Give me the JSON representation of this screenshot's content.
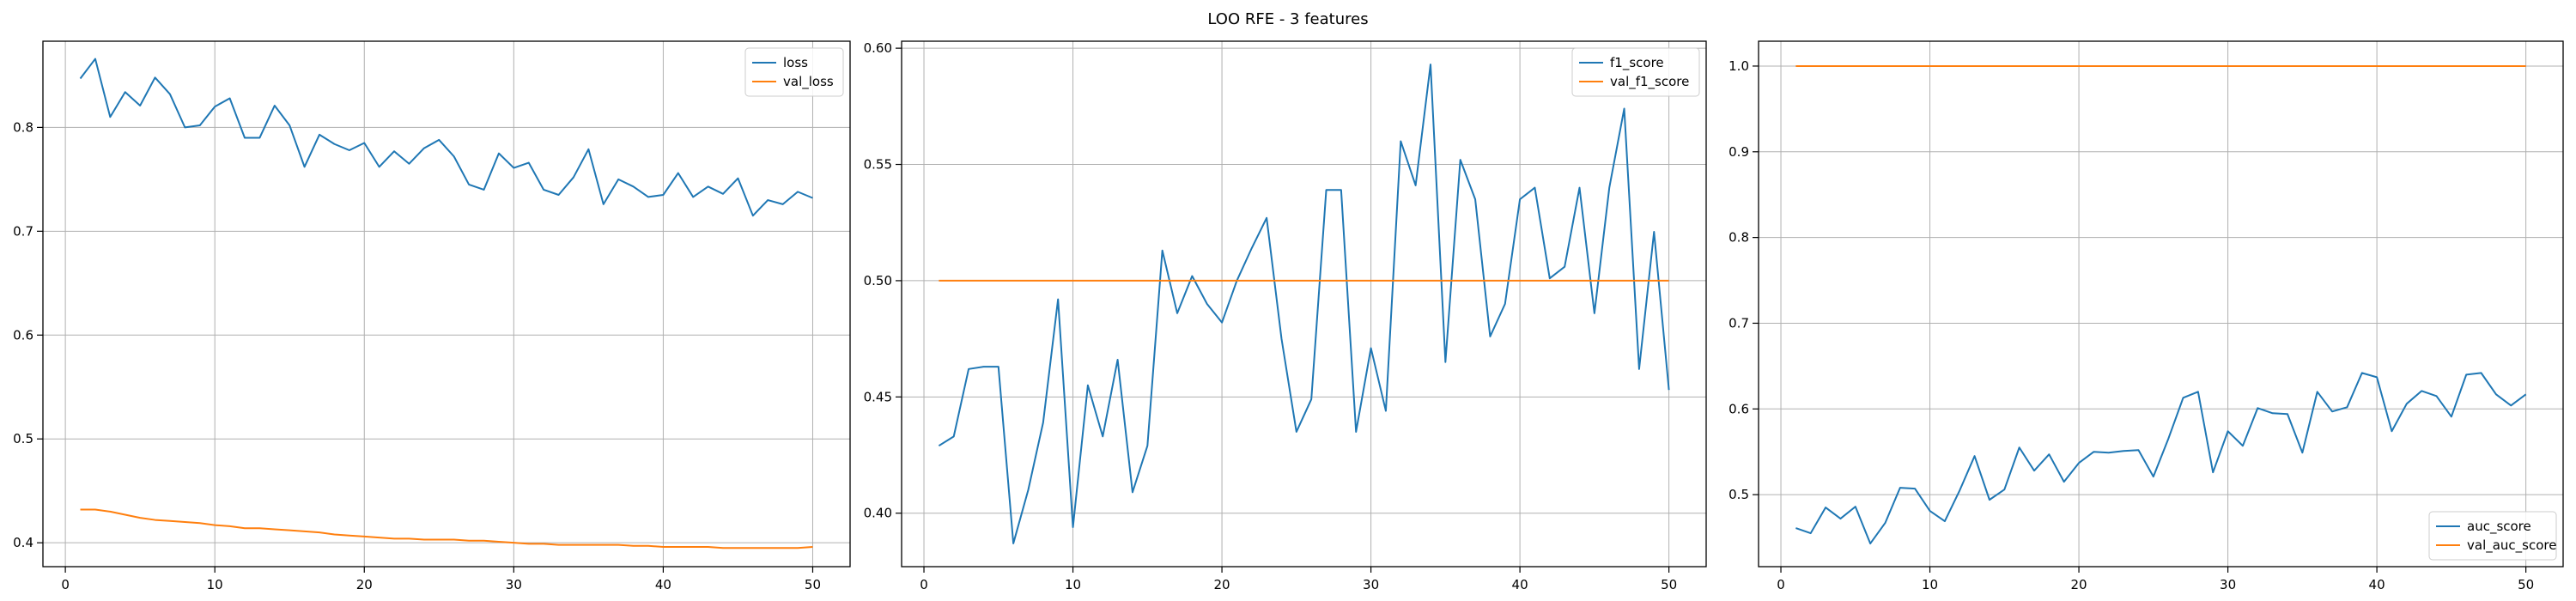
{
  "figure": {
    "title": "LOO RFE - 3 features"
  },
  "colors": {
    "series_primary": "#1f77b4",
    "series_secondary": "#ff7f0e",
    "grid": "#b0b0b0"
  },
  "chart_data": [
    {
      "type": "line",
      "xlabel": "",
      "ylabel": "",
      "xlim": [
        -1.5,
        52.5
      ],
      "ylim": [
        0.377,
        0.883
      ],
      "xticks": [
        0,
        10,
        20,
        30,
        40,
        50
      ],
      "yticks": [
        0.4,
        0.5,
        0.6,
        0.7,
        0.8
      ],
      "grid": true,
      "legend_position": "top-right",
      "x": [
        1,
        2,
        3,
        4,
        5,
        6,
        7,
        8,
        9,
        10,
        11,
        12,
        13,
        14,
        15,
        16,
        17,
        18,
        19,
        20,
        21,
        22,
        23,
        24,
        25,
        26,
        27,
        28,
        29,
        30,
        31,
        32,
        33,
        34,
        35,
        36,
        37,
        38,
        39,
        40,
        41,
        42,
        43,
        44,
        45,
        46,
        47,
        48,
        49,
        50
      ],
      "series": [
        {
          "name": "loss",
          "values": [
            0.847,
            0.866,
            0.81,
            0.834,
            0.821,
            0.848,
            0.832,
            0.8,
            0.802,
            0.82,
            0.828,
            0.79,
            0.79,
            0.821,
            0.802,
            0.762,
            0.793,
            0.784,
            0.778,
            0.785,
            0.762,
            0.777,
            0.765,
            0.78,
            0.788,
            0.772,
            0.745,
            0.74,
            0.775,
            0.761,
            0.766,
            0.74,
            0.735,
            0.752,
            0.779,
            0.726,
            0.75,
            0.743,
            0.733,
            0.735,
            0.756,
            0.733,
            0.743,
            0.736,
            0.751,
            0.715,
            0.73,
            0.726,
            0.738,
            0.732
          ]
        },
        {
          "name": "val_loss",
          "values": [
            0.432,
            0.432,
            0.43,
            0.427,
            0.424,
            0.422,
            0.421,
            0.42,
            0.419,
            0.417,
            0.416,
            0.414,
            0.414,
            0.413,
            0.412,
            0.411,
            0.41,
            0.408,
            0.407,
            0.406,
            0.405,
            0.404,
            0.404,
            0.403,
            0.403,
            0.403,
            0.402,
            0.402,
            0.401,
            0.4,
            0.399,
            0.399,
            0.398,
            0.398,
            0.398,
            0.398,
            0.398,
            0.397,
            0.397,
            0.396,
            0.396,
            0.396,
            0.396,
            0.395,
            0.395,
            0.395,
            0.395,
            0.395,
            0.395,
            0.396
          ]
        }
      ]
    },
    {
      "type": "line",
      "xlabel": "",
      "ylabel": "",
      "xlim": [
        -1.5,
        52.5
      ],
      "ylim": [
        0.377,
        0.603
      ],
      "xticks": [
        0,
        10,
        20,
        30,
        40,
        50
      ],
      "yticks": [
        0.4,
        0.45,
        0.5,
        0.55,
        0.6
      ],
      "grid": true,
      "legend_position": "top-right",
      "x": [
        1,
        2,
        3,
        4,
        5,
        6,
        7,
        8,
        9,
        10,
        11,
        12,
        13,
        14,
        15,
        16,
        17,
        18,
        19,
        20,
        21,
        22,
        23,
        24,
        25,
        26,
        27,
        28,
        29,
        30,
        31,
        32,
        33,
        34,
        35,
        36,
        37,
        38,
        39,
        40,
        41,
        42,
        43,
        44,
        45,
        46,
        47,
        48,
        49,
        50
      ],
      "series": [
        {
          "name": "f1_score",
          "values": [
            0.429,
            0.433,
            0.462,
            0.463,
            0.463,
            0.387,
            0.41,
            0.439,
            0.492,
            0.394,
            0.455,
            0.433,
            0.466,
            0.409,
            0.429,
            0.513,
            0.486,
            0.502,
            0.49,
            0.482,
            0.5,
            0.514,
            0.527,
            0.475,
            0.435,
            0.449,
            0.539,
            0.539,
            0.435,
            0.471,
            0.444,
            0.56,
            0.541,
            0.593,
            0.465,
            0.552,
            0.535,
            0.476,
            0.49,
            0.535,
            0.54,
            0.501,
            0.506,
            0.54,
            0.486,
            0.54,
            0.574,
            0.462,
            0.521,
            0.453
          ]
        },
        {
          "name": "val_f1_score",
          "values": [
            0.5,
            0.5,
            0.5,
            0.5,
            0.5,
            0.5,
            0.5,
            0.5,
            0.5,
            0.5,
            0.5,
            0.5,
            0.5,
            0.5,
            0.5,
            0.5,
            0.5,
            0.5,
            0.5,
            0.5,
            0.5,
            0.5,
            0.5,
            0.5,
            0.5,
            0.5,
            0.5,
            0.5,
            0.5,
            0.5,
            0.5,
            0.5,
            0.5,
            0.5,
            0.5,
            0.5,
            0.5,
            0.5,
            0.5,
            0.5,
            0.5,
            0.5,
            0.5,
            0.5,
            0.5,
            0.5,
            0.5,
            0.5,
            0.5,
            0.5
          ]
        }
      ]
    },
    {
      "type": "line",
      "xlabel": "",
      "ylabel": "",
      "xlim": [
        -1.5,
        52.5
      ],
      "ylim": [
        0.416,
        1.029
      ],
      "xticks": [
        0,
        10,
        20,
        30,
        40,
        50
      ],
      "yticks": [
        0.5,
        0.6,
        0.7,
        0.8,
        0.9,
        1.0
      ],
      "grid": true,
      "legend_position": "bottom-right",
      "x": [
        1,
        2,
        3,
        4,
        5,
        6,
        7,
        8,
        9,
        10,
        11,
        12,
        13,
        14,
        15,
        16,
        17,
        18,
        19,
        20,
        21,
        22,
        23,
        24,
        25,
        26,
        27,
        28,
        29,
        30,
        31,
        32,
        33,
        34,
        35,
        36,
        37,
        38,
        39,
        40,
        41,
        42,
        43,
        44,
        45,
        46,
        47,
        48,
        49,
        50
      ],
      "series": [
        {
          "name": "auc_score",
          "values": [
            0.461,
            0.455,
            0.485,
            0.472,
            0.486,
            0.443,
            0.467,
            0.508,
            0.507,
            0.481,
            0.469,
            0.505,
            0.545,
            0.494,
            0.506,
            0.555,
            0.528,
            0.547,
            0.515,
            0.537,
            0.55,
            0.549,
            0.551,
            0.552,
            0.521,
            0.565,
            0.613,
            0.62,
            0.526,
            0.574,
            0.557,
            0.601,
            0.595,
            0.594,
            0.549,
            0.62,
            0.597,
            0.602,
            0.642,
            0.637,
            0.574,
            0.606,
            0.621,
            0.615,
            0.591,
            0.64,
            0.642,
            0.617,
            0.604,
            0.617
          ]
        },
        {
          "name": "val_auc_score",
          "values": [
            1.0,
            1.0,
            1.0,
            1.0,
            1.0,
            1.0,
            1.0,
            1.0,
            1.0,
            1.0,
            1.0,
            1.0,
            1.0,
            1.0,
            1.0,
            1.0,
            1.0,
            1.0,
            1.0,
            1.0,
            1.0,
            1.0,
            1.0,
            1.0,
            1.0,
            1.0,
            1.0,
            1.0,
            1.0,
            1.0,
            1.0,
            1.0,
            1.0,
            1.0,
            1.0,
            1.0,
            1.0,
            1.0,
            1.0,
            1.0,
            1.0,
            1.0,
            1.0,
            1.0,
            1.0,
            1.0,
            1.0,
            1.0,
            1.0,
            1.0
          ]
        }
      ]
    }
  ]
}
